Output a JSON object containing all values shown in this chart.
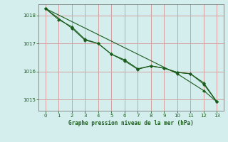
{
  "title": "Graphe pression niveau de la mer (hPa)",
  "bg_color": "#d4eeee",
  "grid_color": "#d4a0a0",
  "line_color": "#1a5c1a",
  "ylim": [
    1014.6,
    1018.4
  ],
  "xlim": [
    -0.5,
    13.5
  ],
  "yticks": [
    1015,
    1016,
    1017,
    1018
  ],
  "xticks": [
    0,
    1,
    2,
    3,
    4,
    5,
    6,
    7,
    8,
    9,
    10,
    11,
    12,
    13
  ],
  "series1_x": [
    0,
    1,
    2,
    3,
    4,
    5,
    6,
    7,
    8,
    9,
    10,
    11,
    12,
    13
  ],
  "series1_y": [
    1018.25,
    1017.85,
    1017.6,
    1017.15,
    1017.0,
    1016.62,
    1016.42,
    1016.1,
    1016.2,
    1016.12,
    1015.97,
    1015.92,
    1015.6,
    1014.92
  ],
  "series2_x": [
    0,
    2,
    3,
    4,
    5,
    6,
    7,
    8,
    9,
    10,
    11,
    12,
    13
  ],
  "series2_y": [
    1018.25,
    1017.55,
    1017.12,
    1017.0,
    1016.62,
    1016.38,
    1016.08,
    1016.2,
    1016.12,
    1015.97,
    1015.92,
    1015.55,
    1014.92
  ],
  "series3_x": [
    0,
    10,
    12,
    13
  ],
  "series3_y": [
    1018.25,
    1015.92,
    1015.32,
    1014.92
  ]
}
